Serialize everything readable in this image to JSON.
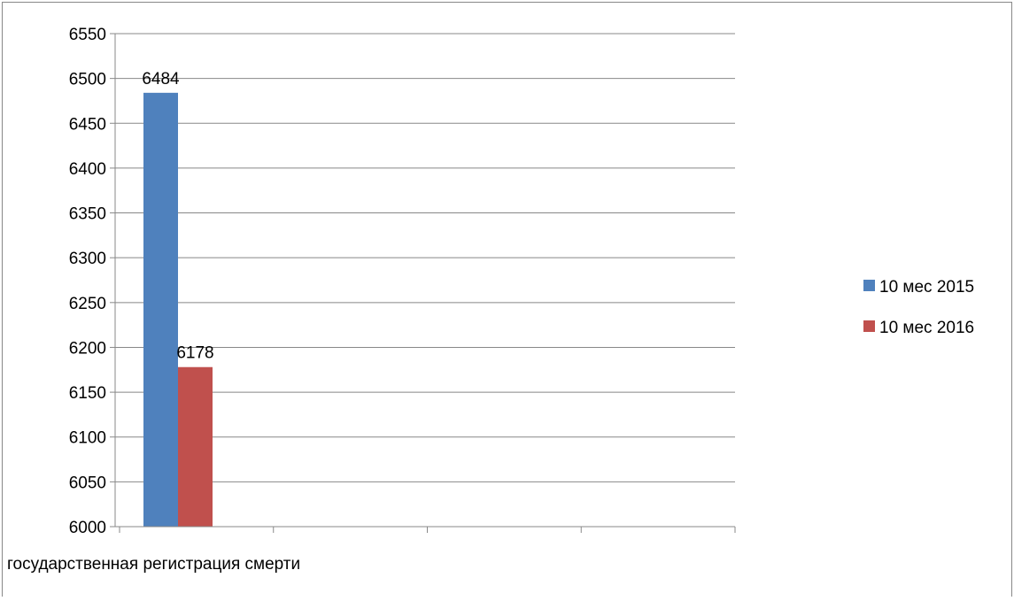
{
  "chart_data": {
    "type": "bar",
    "categories": [
      "государственная регистрация смерти"
    ],
    "series": [
      {
        "name": "10 мес 2015",
        "values": [
          6484
        ],
        "color": "#4f81bd"
      },
      {
        "name": "10 мес 2016",
        "values": [
          6178
        ],
        "color": "#c0504d"
      }
    ],
    "y_ticks": [
      "6550",
      "6500",
      "6450",
      "6400",
      "6350",
      "6300",
      "6250",
      "6200",
      "6150",
      "6100",
      "6050",
      "6000"
    ],
    "ylim": [
      6000,
      6550
    ],
    "y_step": 50,
    "grid": true,
    "legend_position": "right",
    "data_labels": [
      "6484",
      "6178"
    ],
    "x_segments": 4
  }
}
